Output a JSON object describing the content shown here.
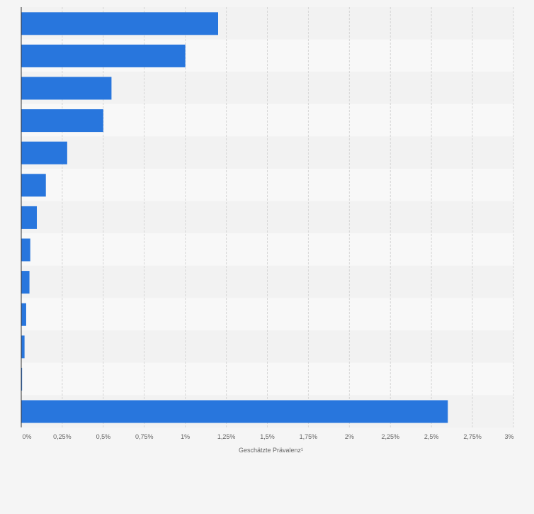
{
  "chart_data": {
    "type": "bar",
    "orientation": "horizontal",
    "xlabel": "Geschätzte Prävalenz¹",
    "xlim": [
      0,
      3
    ],
    "x_ticks": [
      {
        "value": 0,
        "label": "0%"
      },
      {
        "value": 0.25,
        "label": "0,25%"
      },
      {
        "value": 0.5,
        "label": "0,5%"
      },
      {
        "value": 0.75,
        "label": "0,75%"
      },
      {
        "value": 1,
        "label": "1%"
      },
      {
        "value": 1.25,
        "label": "1,25%"
      },
      {
        "value": 1.5,
        "label": "1,5%"
      },
      {
        "value": 1.75,
        "label": "1,75%"
      },
      {
        "value": 2,
        "label": "2%"
      },
      {
        "value": 2.25,
        "label": "2,25%"
      },
      {
        "value": 2.5,
        "label": "2,5%"
      },
      {
        "value": 2.75,
        "label": "2,75%"
      },
      {
        "value": 3,
        "label": "3%"
      }
    ],
    "values": [
      1.2,
      1.0,
      0.55,
      0.5,
      0.28,
      0.15,
      0.095,
      0.055,
      0.05,
      0.03,
      0.02,
      0.005,
      2.6
    ],
    "grid": true,
    "bar_color": "#2876dd"
  }
}
